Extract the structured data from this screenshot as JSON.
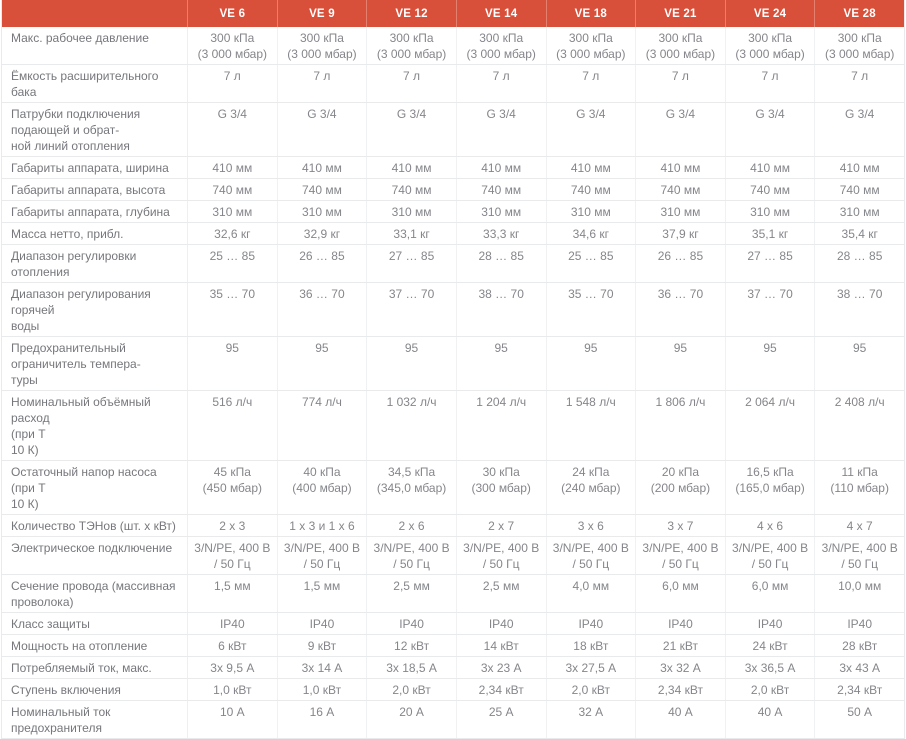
{
  "colors": {
    "accent": "#d9503a",
    "row_border": "#e9eaec",
    "label_text": "#76777c",
    "value_text": "#85868b",
    "header_text": "#ffffff"
  },
  "table": {
    "columns": [
      "VE 6",
      "VE 9",
      "VE 12",
      "VE 14",
      "VE 18",
      "VE 21",
      "VE 24",
      "VE 28"
    ],
    "rows": [
      {
        "label": "Макс. рабочее давление",
        "values": [
          "300 кПа\n(3 000 мбар)",
          "300 кПа\n(3 000 мбар)",
          "300 кПа\n(3 000 мбар)",
          "300 кПа\n(3 000 мбар)",
          "300 кПа\n(3 000 мбар)",
          "300 кПа\n(3 000 мбар)",
          "300 кПа\n(3 000 мбар)",
          "300 кПа\n(3 000 мбар)"
        ]
      },
      {
        "label": "Ёмкость расширительного бака",
        "values": [
          "7 л",
          "7 л",
          "7 л",
          "7 л",
          "7 л",
          "7 л",
          "7 л",
          "7 л"
        ]
      },
      {
        "label": "Патрубки подключения\nподающей и обрат-\nной линий отопления",
        "values": [
          "G 3/4",
          "G 3/4",
          "G 3/4",
          "G 3/4",
          "G 3/4",
          "G 3/4",
          "G 3/4",
          "G 3/4"
        ]
      },
      {
        "label": "Габариты аппарата, ширина",
        "values": [
          "410 мм",
          "410 мм",
          "410 мм",
          "410 мм",
          "410 мм",
          "410 мм",
          "410 мм",
          "410 мм"
        ]
      },
      {
        "label": "Габариты аппарата, высота",
        "values": [
          "740 мм",
          "740 мм",
          "740 мм",
          "740 мм",
          "740 мм",
          "740 мм",
          "740 мм",
          "740 мм"
        ]
      },
      {
        "label": "Габариты аппарата, глубина",
        "values": [
          "310 мм",
          "310 мм",
          "310 мм",
          "310 мм",
          "310 мм",
          "310 мм",
          "310 мм",
          "310 мм"
        ]
      },
      {
        "label": "Масса нетто, прибл.",
        "values": [
          "32,6 кг",
          "32,9 кг",
          "33,1 кг",
          "33,3 кг",
          "34,6 кг",
          "37,9 кг",
          "35,1 кг",
          "35,4 кг"
        ]
      },
      {
        "label": "Диапазон регулировки отопления",
        "values": [
          "25 … 85",
          "26 … 85",
          "27 … 85",
          "28 … 85",
          "25 … 85",
          "26 … 85",
          "27 … 85",
          "28 … 85"
        ]
      },
      {
        "label": "Диапазон регулирования горячей\nводы",
        "values": [
          "35 … 70",
          "36 … 70",
          "37 … 70",
          "38 … 70",
          "35 … 70",
          "36 … 70",
          "37 … 70",
          "38 … 70"
        ]
      },
      {
        "label": "Предохранительный\nограничитель темпера-\nтуры",
        "values": [
          "95",
          "95",
          "95",
          "95",
          "95",
          "95",
          "95",
          "95"
        ]
      },
      {
        "label": "Номинальный объёмный расход\n(при Т\n10 К)",
        "values": [
          "516 л/ч",
          "774 л/ч",
          "1 032 л/ч",
          "1 204 л/ч",
          "1 548 л/ч",
          "1 806 л/ч",
          "2 064 л/ч",
          "2 408 л/ч"
        ]
      },
      {
        "label": "Остаточный напор насоса (при Т\n10 К)",
        "values": [
          "45 кПа\n(450 мбар)",
          "40 кПа\n(400 мбар)",
          "34,5 кПа\n(345,0 мбар)",
          "30 кПа\n(300 мбар)",
          "24 кПа\n(240 мбар)",
          "20 кПа\n(200 мбар)",
          "16,5 кПа\n(165,0 мбар)",
          "11 кПа\n(110 мбар)"
        ]
      },
      {
        "label": "Количество ТЭНов (шт. х кВт)",
        "values": [
          "2 х 3",
          "1 х 3 и 1 х 6",
          "2 х 6",
          "2 х 7",
          "3 х 6",
          "3 х 7",
          "4 х 6",
          "4 х 7"
        ]
      },
      {
        "label": "Электрическое подключение",
        "values": [
          "3/N/PE, 400 В\n/ 50 Гц",
          "3/N/PE, 400 В\n/ 50 Гц",
          "3/N/PE, 400 В\n/ 50 Гц",
          "3/N/PE, 400 В\n/ 50 Гц",
          "3/N/PE, 400 В\n/ 50 Гц",
          "3/N/PE, 400 В\n/ 50 Гц",
          "3/N/PE, 400 В\n/ 50 Гц",
          "3/N/PE, 400 В\n/ 50 Гц"
        ]
      },
      {
        "label": "Сечение провода (массивная\nпроволока)",
        "values": [
          "1,5 мм",
          "1,5 мм",
          "2,5 мм",
          "2,5 мм",
          "4,0 мм",
          "6,0 мм",
          "6,0 мм",
          "10,0 мм"
        ]
      },
      {
        "label": "Класс защиты",
        "values": [
          "IP40",
          "IP40",
          "IP40",
          "IP40",
          "IP40",
          "IP40",
          "IP40",
          "IP40"
        ]
      },
      {
        "label": "Мощность на отопление",
        "values": [
          "6 кВт",
          "9 кВт",
          "12 кВт",
          "14 кВт",
          "18 кВт",
          "21 кВт",
          "24 кВт",
          "28 кВт"
        ]
      },
      {
        "label": "Потребляемый ток, макс.",
        "values": [
          "3х 9,5 А",
          "3х 14 А",
          "3х 18,5 А",
          "3х 23 А",
          "3х 27,5 А",
          "3х 32 А",
          "3х 36,5 А",
          "3х 43 А"
        ]
      },
      {
        "label": "Ступень включения",
        "values": [
          "1,0 кВт",
          "1,0 кВт",
          "2,0 кВт",
          "2,34 кВт",
          "2,0 кВт",
          "2,34 кВт",
          "2,0 кВт",
          "2,34 кВт"
        ]
      },
      {
        "label": "Номинальный ток\nпредохранителя",
        "values": [
          "10 А",
          "16 А",
          "20 А",
          "25 А",
          "32 А",
          "40 А",
          "40 А",
          "50 А"
        ]
      }
    ]
  }
}
